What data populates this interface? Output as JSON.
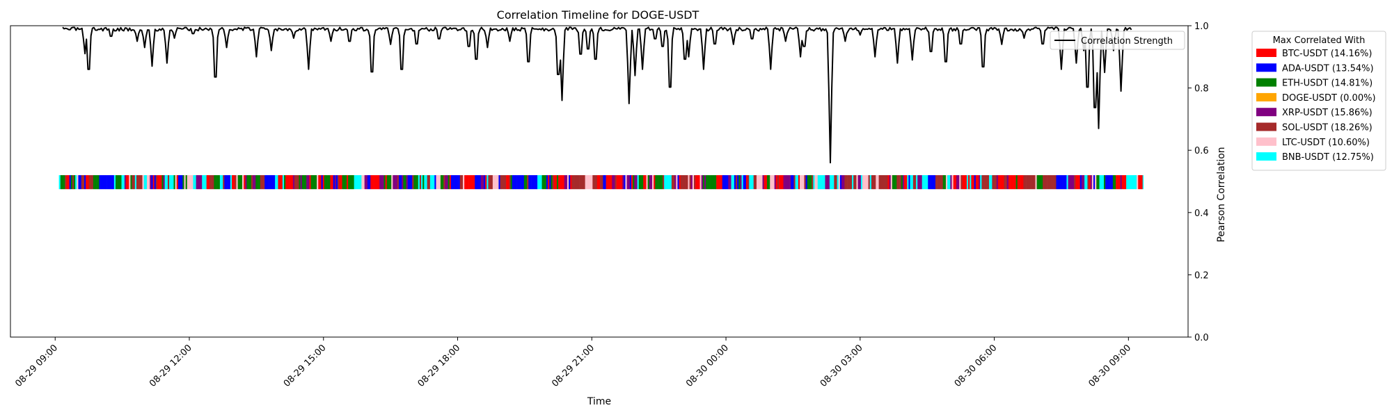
{
  "chart_data": {
    "type": "line",
    "title": "Correlation Timeline for DOGE-USDT",
    "xlabel": "Time",
    "ylabel": "Pearson Correlation",
    "ylim": [
      0.0,
      1.0
    ],
    "y_axis_side": "right",
    "grid": false,
    "xlim": [
      "2025-08-29 08:00",
      "2025-08-30 10:20"
    ],
    "x_ticks": [
      {
        "t": "2025-08-29 09:00",
        "label": "08-29 09:00"
      },
      {
        "t": "2025-08-29 12:00",
        "label": "08-29 12:00"
      },
      {
        "t": "2025-08-29 15:00",
        "label": "08-29 15:00"
      },
      {
        "t": "2025-08-29 18:00",
        "label": "08-29 18:00"
      },
      {
        "t": "2025-08-29 21:00",
        "label": "08-29 21:00"
      },
      {
        "t": "2025-08-30 00:00",
        "label": "08-30 00:00"
      },
      {
        "t": "2025-08-30 03:00",
        "label": "08-30 03:00"
      },
      {
        "t": "2025-08-30 06:00",
        "label": "08-30 06:00"
      },
      {
        "t": "2025-08-30 09:00",
        "label": "08-30 09:00"
      }
    ],
    "y_ticks": [
      {
        "v": 0.0,
        "label": "0.0"
      },
      {
        "v": 0.2,
        "label": "0.2"
      },
      {
        "v": 0.4,
        "label": "0.4"
      },
      {
        "v": 0.6,
        "label": "0.6"
      },
      {
        "v": 0.8,
        "label": "0.8"
      },
      {
        "v": 1.0,
        "label": "1.0"
      }
    ],
    "series": [
      {
        "name": "Correlation Strength",
        "color": "#000000",
        "baseline": 0.995,
        "span": [
          "2025-08-29 09:10",
          "2025-08-30 09:05"
        ],
        "dips": [
          [
            "2025-08-29 09:40",
            0.91
          ],
          [
            "2025-08-29 09:45",
            0.83
          ],
          [
            "2025-08-29 10:15",
            0.96
          ],
          [
            "2025-08-29 10:50",
            0.95
          ],
          [
            "2025-08-29 11:00",
            0.93
          ],
          [
            "2025-08-29 11:10",
            0.87
          ],
          [
            "2025-08-29 11:30",
            0.88
          ],
          [
            "2025-08-29 11:40",
            0.96
          ],
          [
            "2025-08-29 12:05",
            0.97
          ],
          [
            "2025-08-29 12:35",
            0.8
          ],
          [
            "2025-08-29 12:50",
            0.93
          ],
          [
            "2025-08-29 13:30",
            0.9
          ],
          [
            "2025-08-29 13:50",
            0.92
          ],
          [
            "2025-08-29 14:20",
            0.96
          ],
          [
            "2025-08-29 14:40",
            0.86
          ],
          [
            "2025-08-29 15:10",
            0.95
          ],
          [
            "2025-08-29 15:35",
            0.94
          ],
          [
            "2025-08-29 16:05",
            0.82
          ],
          [
            "2025-08-29 16:30",
            0.94
          ],
          [
            "2025-08-29 16:45",
            0.83
          ],
          [
            "2025-08-29 17:05",
            0.93
          ],
          [
            "2025-08-29 17:35",
            0.95
          ],
          [
            "2025-08-29 18:15",
            0.92
          ],
          [
            "2025-08-29 18:25",
            0.87
          ],
          [
            "2025-08-29 18:40",
            0.93
          ],
          [
            "2025-08-29 19:10",
            0.95
          ],
          [
            "2025-08-29 19:35",
            0.86
          ],
          [
            "2025-08-29 20:15",
            0.81
          ],
          [
            "2025-08-29 20:20",
            0.76
          ],
          [
            "2025-08-29 20:45",
            0.89
          ],
          [
            "2025-08-29 20:55",
            0.91
          ],
          [
            "2025-08-29 21:05",
            0.87
          ],
          [
            "2025-08-29 21:50",
            0.75
          ],
          [
            "2025-08-29 21:58",
            0.84
          ],
          [
            "2025-08-29 22:08",
            0.86
          ],
          [
            "2025-08-29 22:25",
            0.95
          ],
          [
            "2025-08-29 22:35",
            0.92
          ],
          [
            "2025-08-29 22:45",
            0.76
          ],
          [
            "2025-08-29 23:05",
            0.87
          ],
          [
            "2025-08-29 23:10",
            0.9
          ],
          [
            "2025-08-29 23:30",
            0.86
          ],
          [
            "2025-08-29 23:45",
            0.93
          ],
          [
            "2025-08-30 00:10",
            0.94
          ],
          [
            "2025-08-30 00:35",
            0.95
          ],
          [
            "2025-08-30 01:00",
            0.86
          ],
          [
            "2025-08-30 01:20",
            0.95
          ],
          [
            "2025-08-30 01:40",
            0.9
          ],
          [
            "2025-08-30 01:45",
            0.92
          ],
          [
            "2025-08-30 02:20",
            0.56
          ],
          [
            "2025-08-30 02:40",
            0.95
          ],
          [
            "2025-08-30 03:00",
            0.97
          ],
          [
            "2025-08-30 03:20",
            0.9
          ],
          [
            "2025-08-30 03:50",
            0.88
          ],
          [
            "2025-08-30 04:10",
            0.89
          ],
          [
            "2025-08-30 04:35",
            0.9
          ],
          [
            "2025-08-30 04:55",
            0.86
          ],
          [
            "2025-08-30 05:15",
            0.93
          ],
          [
            "2025-08-30 05:45",
            0.84
          ],
          [
            "2025-08-30 06:10",
            0.94
          ],
          [
            "2025-08-30 06:40",
            0.96
          ],
          [
            "2025-08-30 07:05",
            0.93
          ],
          [
            "2025-08-30 07:30",
            0.86
          ],
          [
            "2025-08-30 07:50",
            0.88
          ],
          [
            "2025-08-30 08:00",
            0.92
          ],
          [
            "2025-08-30 08:05",
            0.76
          ],
          [
            "2025-08-30 08:15",
            0.68
          ],
          [
            "2025-08-30 08:20",
            0.67
          ],
          [
            "2025-08-30 08:28",
            0.85
          ],
          [
            "2025-08-30 08:40",
            0.92
          ],
          [
            "2025-08-30 08:50",
            0.79
          ]
        ]
      }
    ],
    "band": {
      "y_range": [
        0.475,
        0.52
      ],
      "span": [
        "2025-08-29 09:05",
        "2025-08-30 09:20"
      ],
      "segment_minutes": 2,
      "pattern_seed": 17
    },
    "legends": [
      {
        "placement": "inside-top-right",
        "entries": [
          {
            "label": "Correlation Strength",
            "color": "#000000",
            "marker": "line"
          }
        ]
      },
      {
        "placement": "outside-right",
        "title": "Max Correlated With",
        "entries": [
          {
            "label": "BTC-USDT (14.16%)",
            "color": "#ff0000",
            "share": 14.16
          },
          {
            "label": "ADA-USDT (13.54%)",
            "color": "#0000ff",
            "share": 13.54
          },
          {
            "label": "ETH-USDT (14.81%)",
            "color": "#008000",
            "share": 14.81
          },
          {
            "label": "DOGE-USDT (0.00%)",
            "color": "#ffa500",
            "share": 0.0
          },
          {
            "label": "XRP-USDT (15.86%)",
            "color": "#800080",
            "share": 15.86
          },
          {
            "label": "SOL-USDT (18.26%)",
            "color": "#a52a2a",
            "share": 18.26
          },
          {
            "label": "LTC-USDT (10.60%)",
            "color": "#ffc0cb",
            "share": 10.6
          },
          {
            "label": "BNB-USDT (12.75%)",
            "color": "#00ffff",
            "share": 12.75
          }
        ]
      }
    ]
  }
}
